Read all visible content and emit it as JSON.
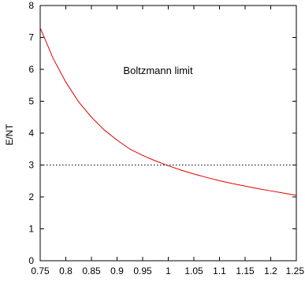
{
  "chart_data": {
    "type": "line",
    "title": "",
    "xlabel": "",
    "ylabel": "E/NT",
    "xlim": [
      0.75,
      1.25
    ],
    "ylim": [
      0,
      8
    ],
    "x_ticks": [
      0.75,
      0.8,
      0.85,
      0.9,
      0.95,
      1,
      1.05,
      1.1,
      1.15,
      1.2,
      1.25
    ],
    "x_tick_labels": [
      "0.75",
      "0.8",
      "0.85",
      "0.9",
      "0.95",
      "1",
      "1.05",
      "1.1",
      "1.15",
      "1.2",
      "1.25"
    ],
    "y_ticks": [
      0,
      1,
      2,
      3,
      4,
      5,
      6,
      7,
      8
    ],
    "y_tick_labels": [
      "0",
      "1",
      "2",
      "3",
      "4",
      "5",
      "6",
      "7",
      "8"
    ],
    "grid": false,
    "series": [
      {
        "color": "#e00000",
        "style": "solid",
        "x": [
          0.75,
          0.775,
          0.8,
          0.825,
          0.85,
          0.875,
          0.9,
          0.925,
          0.95,
          0.975,
          1.0,
          1.025,
          1.05,
          1.075,
          1.1,
          1.125,
          1.15,
          1.175,
          1.2,
          1.225,
          1.25
        ],
        "y": [
          7.3,
          6.35,
          5.6,
          4.98,
          4.5,
          4.1,
          3.78,
          3.5,
          3.3,
          3.13,
          2.98,
          2.84,
          2.72,
          2.61,
          2.51,
          2.42,
          2.34,
          2.26,
          2.19,
          2.12,
          2.05
        ]
      },
      {
        "color": "#000000",
        "style": "dotted",
        "x": [
          0.75,
          1.25
        ],
        "y": [
          3,
          3
        ]
      }
    ],
    "annotations": [
      {
        "text": "Boltzmann limit",
        "x": 0.98,
        "y": 5.95
      }
    ]
  }
}
